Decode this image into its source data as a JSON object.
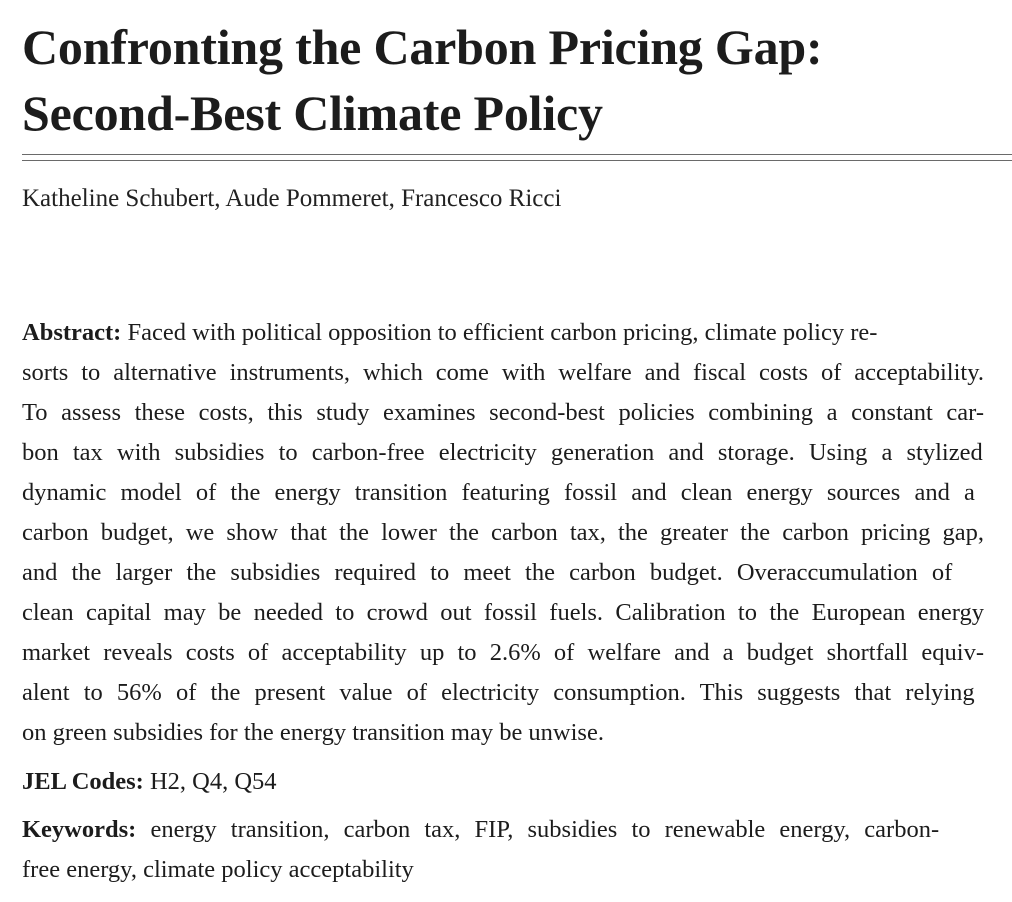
{
  "paper": {
    "title_line1": "Confronting the Carbon Pricing Gap:",
    "title_line2": "Second-Best Climate Policy",
    "authors": "Katheline Schubert, Aude Pommeret, Francesco Ricci",
    "abstract_label": "Abstract:",
    "abstract_lines": [
      "Faced with political opposition to efficient carbon pricing, climate policy re-",
      "sorts to alternative instruments, which come with welfare and fiscal costs of acceptability.",
      "To assess these costs, this study examines second-best policies combining a constant car-",
      "bon tax with subsidies to carbon-free electricity generation and storage. Using a stylized",
      "dynamic model of the energy transition featuring fossil and clean energy sources and a",
      "carbon budget, we show that the lower the carbon tax, the greater the carbon pricing gap,",
      "and the larger the subsidies required to meet the carbon budget. Overaccumulation of",
      "clean capital may be needed to crowd out fossil fuels. Calibration to the European energy",
      "market reveals costs of acceptability up to 2.6% of welfare and a budget shortfall equiv-",
      "alent to 56% of the present value of electricity consumption. This suggests that relying",
      "on green subsidies for the energy transition may be unwise."
    ],
    "jel_label": "JEL Codes:",
    "jel_codes": "H2, Q4, Q54",
    "keywords_label": "Keywords:",
    "keywords_lines": [
      "energy transition, carbon tax, FIP, subsidies to renewable energy, carbon-",
      "free energy, climate policy acceptability"
    ]
  }
}
